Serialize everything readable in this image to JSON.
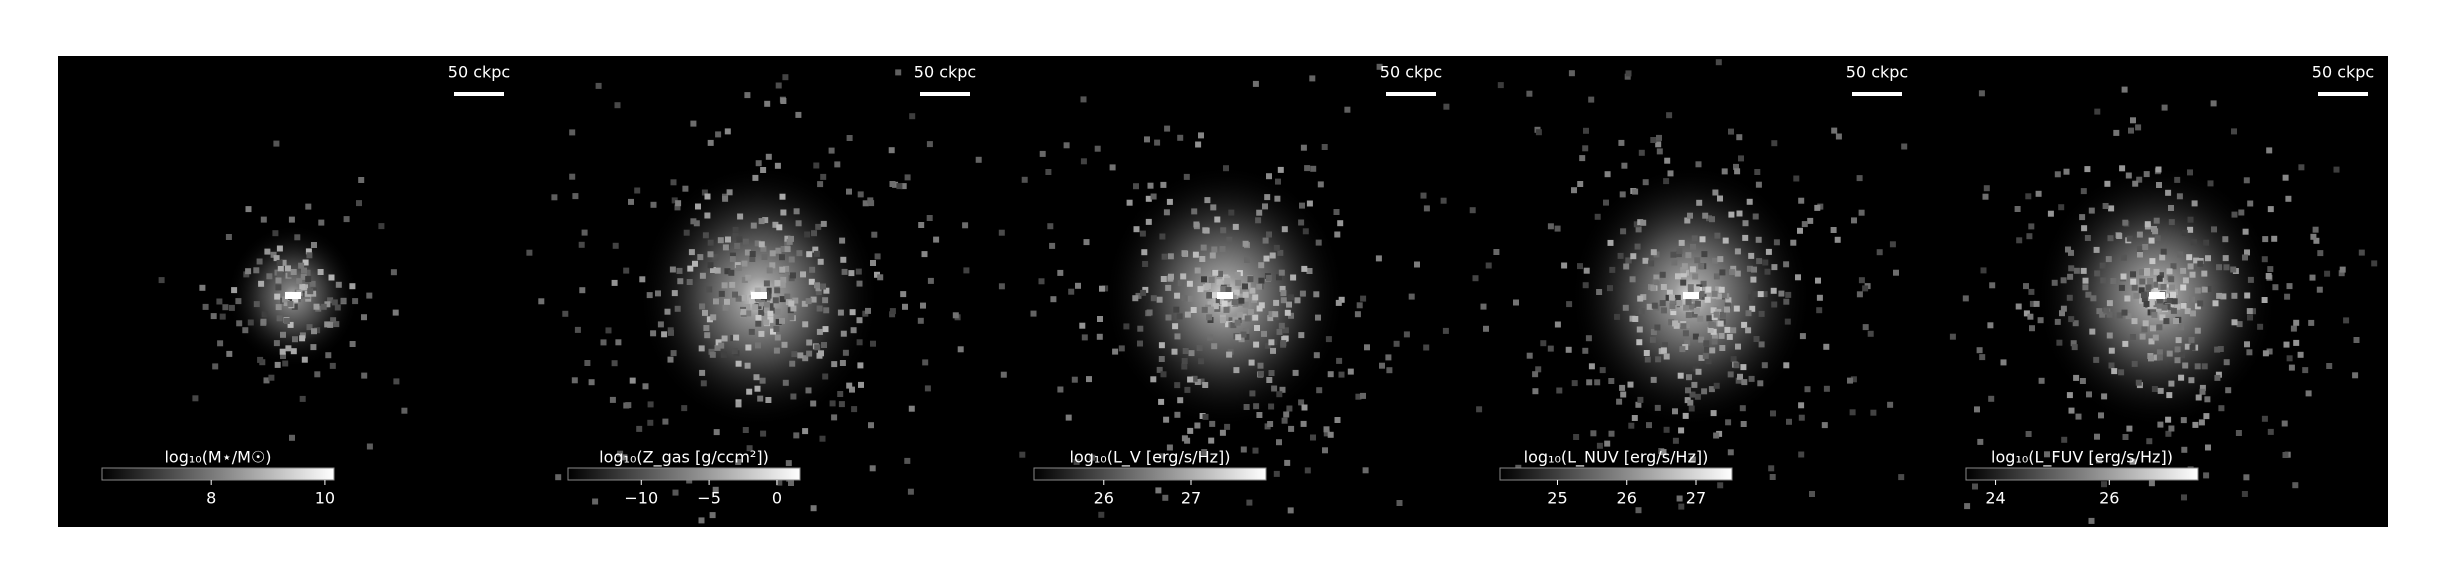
{
  "chart_data": [
    {
      "type": "image",
      "scale_label": "50 ckpc",
      "colorbar_label": "log₁₀(M⋆/M☉)",
      "clim": [
        6.08,
        10.16
      ],
      "ticks": [
        8,
        10
      ]
    },
    {
      "type": "image",
      "scale_label": "50 ckpc",
      "colorbar_label": "log₁₀(Z_gas [g/ccm²])",
      "clim": [
        -15.4,
        1.7
      ],
      "ticks": [
        {
          "value": -10,
          "label": "−10"
        },
        {
          "value": -5,
          "label": "−5"
        },
        0
      ]
    },
    {
      "type": "image",
      "scale_label": "50 ckpc",
      "colorbar_label": "log₁₀(L_V [erg/s/Hz])",
      "clim": [
        25.2,
        27.86
      ],
      "ticks": [
        26,
        27
      ]
    },
    {
      "type": "image",
      "scale_label": "50 ckpc",
      "colorbar_label": "log₁₀(L_NUV [erg/s/Hz])",
      "clim": [
        24.17,
        27.52
      ],
      "ticks": [
        25,
        26,
        27
      ]
    },
    {
      "type": "image",
      "scale_label": "50 ckpc",
      "colorbar_label": "log₁₀(L_FUV [erg/s/Hz])",
      "clim": [
        23.48,
        27.56
      ],
      "ticks": [
        24,
        26
      ]
    }
  ]
}
